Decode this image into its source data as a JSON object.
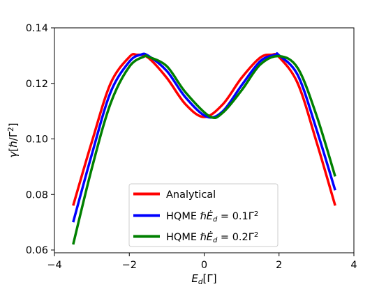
{
  "chart_data": {
    "type": "line",
    "title": "",
    "xlabel": "E_d[Γ]",
    "ylabel": "γ[ℏ/Γ²]",
    "xlim": [
      -4,
      4
    ],
    "ylim": [
      0.059,
      0.14
    ],
    "x_ticks": [
      -4,
      -2,
      0,
      2,
      4
    ],
    "x_tick_labels": [
      "−4",
      "−2",
      "0",
      "2",
      "4"
    ],
    "y_ticks": [
      0.06,
      0.08,
      0.1,
      0.12,
      0.14
    ],
    "y_tick_labels": [
      "0.06",
      "0.08",
      "0.10",
      "0.12",
      "0.14"
    ],
    "grid": false,
    "legend_position": "lower-center",
    "series": [
      {
        "name": "Analytical",
        "color": "#ff0000",
        "x": [
          -3.5,
          -3.0,
          -2.5,
          -2.0,
          -1.8,
          -1.5,
          -1.0,
          -0.5,
          0.0,
          0.5,
          1.0,
          1.5,
          1.8,
          2.0,
          2.5,
          3.0,
          3.5
        ],
        "y": [
          0.076,
          0.099,
          0.12,
          0.1295,
          0.1303,
          0.1293,
          0.122,
          0.1125,
          0.1079,
          0.1125,
          0.122,
          0.1293,
          0.1303,
          0.1295,
          0.12,
          0.099,
          0.076
        ]
      },
      {
        "name": "HQME ℏĖ_d = 0.1Γ²",
        "color": "#0000ff",
        "x": [
          -3.5,
          -3.0,
          -2.5,
          -2.0,
          -1.7,
          -1.5,
          -1.0,
          -0.5,
          0.07,
          0.5,
          1.0,
          1.5,
          1.9,
          2.0,
          2.5,
          3.0,
          3.5
        ],
        "y": [
          0.07,
          0.0945,
          0.1168,
          0.1278,
          0.1303,
          0.13,
          0.1245,
          0.115,
          0.108,
          0.11,
          0.1193,
          0.128,
          0.1303,
          0.1301,
          0.123,
          0.1035,
          0.0815
        ]
      },
      {
        "name": "HQME ℏĖ_d = 0.2Γ²",
        "color": "#008000",
        "x": [
          -3.5,
          -3.0,
          -2.5,
          -2.0,
          -1.6,
          -1.5,
          -1.0,
          -0.5,
          0.15,
          0.5,
          1.0,
          1.5,
          2.0,
          2.5,
          3.0,
          3.5
        ],
        "y": [
          0.062,
          0.0895,
          0.1128,
          0.126,
          0.1297,
          0.1296,
          0.1262,
          0.1168,
          0.1081,
          0.1095,
          0.1175,
          0.1268,
          0.1298,
          0.1255,
          0.1085,
          0.0865
        ]
      }
    ]
  }
}
